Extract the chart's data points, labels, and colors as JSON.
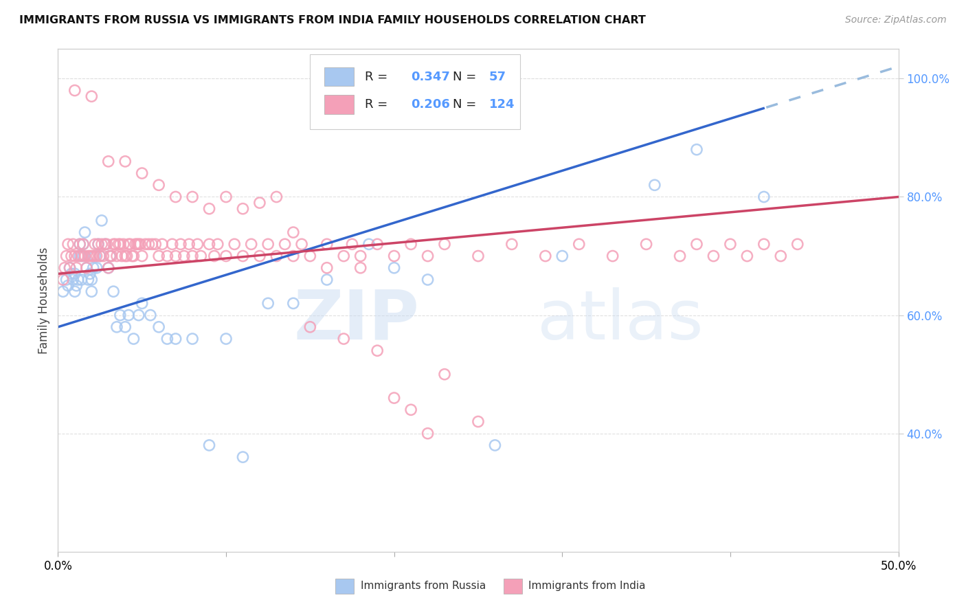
{
  "title": "IMMIGRANTS FROM RUSSIA VS IMMIGRANTS FROM INDIA FAMILY HOUSEHOLDS CORRELATION CHART",
  "source": "Source: ZipAtlas.com",
  "ylabel": "Family Households",
  "right_yticks": [
    "100.0%",
    "80.0%",
    "60.0%",
    "40.0%"
  ],
  "right_ytick_vals": [
    1.0,
    0.8,
    0.6,
    0.4
  ],
  "xlim": [
    0.0,
    0.5
  ],
  "ylim": [
    0.2,
    1.05
  ],
  "R_russia": 0.347,
  "N_russia": 57,
  "R_india": 0.206,
  "N_india": 124,
  "color_russia": "#a8c8f0",
  "color_india": "#f4a0b8",
  "trendline_russia_color": "#3366cc",
  "trendline_india_color": "#cc4466",
  "trendline_russia_dashed_color": "#99bbdd",
  "background_color": "#ffffff",
  "grid_color": "#e0e0e0",
  "russia_x": [
    0.003,
    0.005,
    0.006,
    0.007,
    0.008,
    0.009,
    0.01,
    0.01,
    0.011,
    0.012,
    0.013,
    0.013,
    0.014,
    0.015,
    0.015,
    0.016,
    0.017,
    0.018,
    0.019,
    0.02,
    0.02,
    0.021,
    0.022,
    0.023,
    0.024,
    0.025,
    0.026,
    0.028,
    0.03,
    0.031,
    0.033,
    0.035,
    0.037,
    0.04,
    0.042,
    0.045,
    0.048,
    0.05,
    0.055,
    0.06,
    0.065,
    0.07,
    0.08,
    0.09,
    0.1,
    0.11,
    0.125,
    0.14,
    0.16,
    0.185,
    0.2,
    0.22,
    0.26,
    0.3,
    0.355,
    0.38,
    0.42
  ],
  "russia_y": [
    0.64,
    0.66,
    0.65,
    0.68,
    0.67,
    0.66,
    0.64,
    0.67,
    0.65,
    0.66,
    0.7,
    0.72,
    0.66,
    0.7,
    0.72,
    0.74,
    0.68,
    0.66,
    0.67,
    0.64,
    0.66,
    0.68,
    0.7,
    0.68,
    0.72,
    0.7,
    0.76,
    0.72,
    0.68,
    0.7,
    0.64,
    0.58,
    0.6,
    0.58,
    0.6,
    0.56,
    0.6,
    0.62,
    0.6,
    0.58,
    0.56,
    0.56,
    0.56,
    0.38,
    0.56,
    0.36,
    0.62,
    0.62,
    0.66,
    0.72,
    0.68,
    0.66,
    0.38,
    0.7,
    0.82,
    0.88,
    0.8
  ],
  "india_x": [
    0.003,
    0.004,
    0.005,
    0.006,
    0.007,
    0.008,
    0.009,
    0.01,
    0.011,
    0.012,
    0.013,
    0.014,
    0.015,
    0.016,
    0.017,
    0.018,
    0.019,
    0.02,
    0.021,
    0.022,
    0.023,
    0.024,
    0.025,
    0.026,
    0.027,
    0.028,
    0.029,
    0.03,
    0.031,
    0.032,
    0.033,
    0.034,
    0.035,
    0.036,
    0.037,
    0.038,
    0.039,
    0.04,
    0.041,
    0.042,
    0.043,
    0.044,
    0.045,
    0.046,
    0.047,
    0.048,
    0.049,
    0.05,
    0.052,
    0.054,
    0.056,
    0.058,
    0.06,
    0.062,
    0.065,
    0.068,
    0.07,
    0.073,
    0.075,
    0.078,
    0.08,
    0.083,
    0.085,
    0.09,
    0.093,
    0.095,
    0.1,
    0.105,
    0.11,
    0.115,
    0.12,
    0.125,
    0.13,
    0.135,
    0.14,
    0.145,
    0.15,
    0.16,
    0.17,
    0.175,
    0.18,
    0.19,
    0.2,
    0.21,
    0.22,
    0.23,
    0.25,
    0.27,
    0.29,
    0.31,
    0.33,
    0.35,
    0.37,
    0.38,
    0.39,
    0.4,
    0.41,
    0.42,
    0.43,
    0.44,
    0.01,
    0.02,
    0.03,
    0.04,
    0.05,
    0.06,
    0.07,
    0.08,
    0.09,
    0.1,
    0.11,
    0.12,
    0.13,
    0.14,
    0.15,
    0.16,
    0.17,
    0.18,
    0.19,
    0.2,
    0.21,
    0.22,
    0.23,
    0.25
  ],
  "india_y": [
    0.66,
    0.68,
    0.7,
    0.72,
    0.68,
    0.7,
    0.72,
    0.7,
    0.68,
    0.7,
    0.72,
    0.7,
    0.72,
    0.7,
    0.68,
    0.7,
    0.7,
    0.7,
    0.7,
    0.72,
    0.7,
    0.72,
    0.7,
    0.72,
    0.7,
    0.72,
    0.72,
    0.68,
    0.7,
    0.7,
    0.72,
    0.72,
    0.7,
    0.72,
    0.72,
    0.7,
    0.72,
    0.7,
    0.7,
    0.72,
    0.72,
    0.7,
    0.7,
    0.72,
    0.72,
    0.72,
    0.72,
    0.7,
    0.72,
    0.72,
    0.72,
    0.72,
    0.7,
    0.72,
    0.7,
    0.72,
    0.7,
    0.72,
    0.7,
    0.72,
    0.7,
    0.72,
    0.7,
    0.72,
    0.7,
    0.72,
    0.7,
    0.72,
    0.7,
    0.72,
    0.7,
    0.72,
    0.7,
    0.72,
    0.7,
    0.72,
    0.7,
    0.72,
    0.7,
    0.72,
    0.7,
    0.72,
    0.7,
    0.72,
    0.7,
    0.72,
    0.7,
    0.72,
    0.7,
    0.72,
    0.7,
    0.72,
    0.7,
    0.72,
    0.7,
    0.72,
    0.7,
    0.72,
    0.7,
    0.72,
    0.98,
    0.97,
    0.86,
    0.86,
    0.84,
    0.82,
    0.8,
    0.8,
    0.78,
    0.8,
    0.78,
    0.79,
    0.8,
    0.74,
    0.58,
    0.68,
    0.56,
    0.68,
    0.54,
    0.46,
    0.44,
    0.4,
    0.5,
    0.42
  ],
  "watermark_zip_color": "#c5d8f0",
  "watermark_atlas_color": "#c5d8f0"
}
